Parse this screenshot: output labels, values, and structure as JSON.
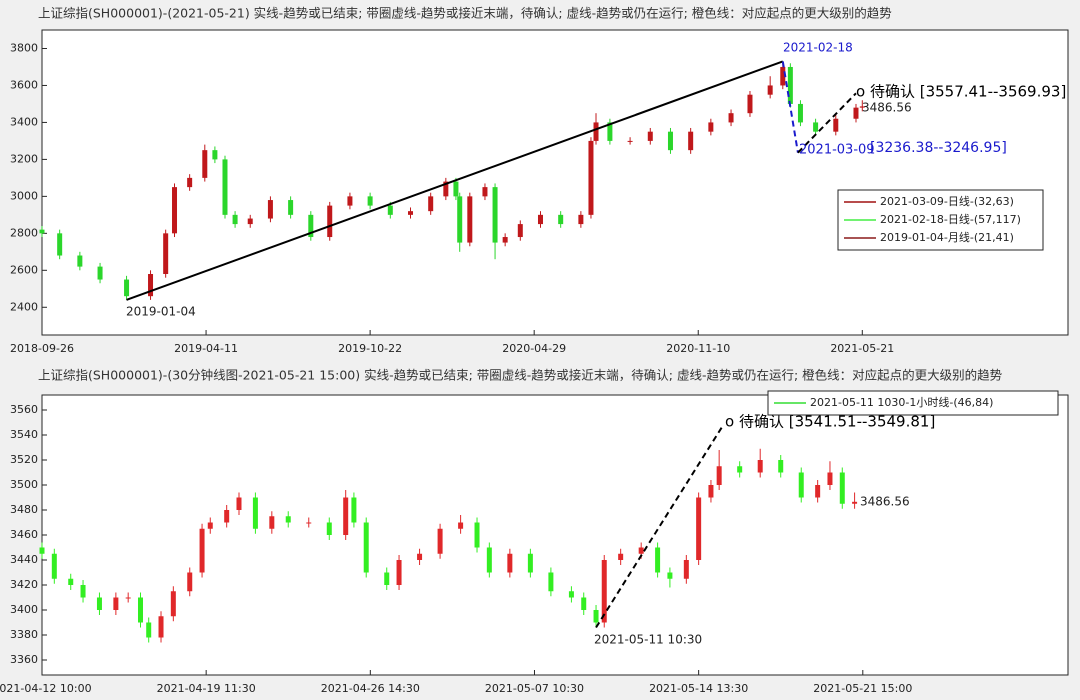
{
  "chart_data": [
    {
      "type": "candlestick",
      "title": "上证综指(SH000001)-(2021-05-21)  实线-趋势或已结束;  带圈虚线-趋势或接近末端，待确认;  虚线-趋势或仍在运行;  橙色线：对应起点的更大级别的趋势",
      "up_color": "#c0181b",
      "down_color": "#2bd62b",
      "x": [
        0,
        14,
        30,
        46,
        67,
        86,
        98,
        105,
        117,
        129,
        137,
        145,
        153,
        165,
        181,
        197,
        213,
        228,
        244,
        260,
        276,
        292,
        308,
        320,
        328,
        331,
        339,
        351,
        359,
        367,
        379,
        395,
        411,
        427,
        435,
        439,
        450,
        466,
        482,
        498,
        514,
        530,
        546,
        561,
        577,
        587,
        593,
        601,
        613,
        629,
        645,
        650
      ],
      "open": [
        2820,
        2800,
        2680,
        2620,
        2550,
        2460,
        2580,
        2800,
        3050,
        3100,
        3250,
        3200,
        2900,
        2850,
        2880,
        2980,
        2900,
        2780,
        2950,
        3000,
        2950,
        2900,
        2920,
        3000,
        3080,
        3000,
        2750,
        3000,
        3050,
        2750,
        2780,
        2850,
        2900,
        2850,
        2900,
        3300,
        3400,
        3300,
        3300,
        3350,
        3250,
        3350,
        3400,
        3450,
        3550,
        3600,
        3700,
        3500,
        3400,
        3350,
        3420,
        3480
      ],
      "high": [
        2840,
        2820,
        2700,
        2640,
        2570,
        2600,
        2820,
        3070,
        3120,
        3280,
        3270,
        3220,
        2920,
        2900,
        3000,
        3000,
        2920,
        2970,
        3020,
        3020,
        2970,
        2940,
        3020,
        3100,
        3100,
        3020,
        3020,
        3070,
        3070,
        2800,
        2870,
        2920,
        2920,
        2920,
        3320,
        3450,
        3420,
        3320,
        3370,
        3370,
        3370,
        3420,
        3470,
        3570,
        3650,
        3730,
        3720,
        3520,
        3420,
        3440,
        3500,
        3520
      ],
      "low": [
        2780,
        2660,
        2600,
        2530,
        2440,
        2440,
        2560,
        2780,
        3030,
        3080,
        3180,
        2880,
        2830,
        2830,
        2860,
        2880,
        2760,
        2760,
        2930,
        2930,
        2880,
        2880,
        2900,
        2980,
        2980,
        2700,
        2730,
        2980,
        2660,
        2730,
        2760,
        2830,
        2830,
        2830,
        2880,
        3280,
        3280,
        3280,
        3280,
        3230,
        3230,
        3330,
        3380,
        3430,
        3530,
        3580,
        3480,
        3380,
        3330,
        3330,
        3400,
        3460
      ],
      "close": [
        2800,
        2680,
        2620,
        2550,
        2460,
        2580,
        2800,
        3050,
        3100,
        3250,
        3200,
        2900,
        2850,
        2880,
        2980,
        2900,
        2780,
        2950,
        3000,
        2950,
        2900,
        2920,
        3000,
        3080,
        3000,
        2750,
        3000,
        3050,
        2750,
        2780,
        2850,
        2900,
        2850,
        2900,
        3300,
        3400,
        3300,
        3300,
        3350,
        3250,
        3350,
        3400,
        3450,
        3550,
        3600,
        3700,
        3500,
        3400,
        3350,
        3420,
        3480,
        3486.56
      ],
      "xlim": [
        0,
        813
      ],
      "xticks": [
        {
          "value": 0,
          "label": "2018-09-26"
        },
        {
          "value": 130,
          "label": "2019-04-11"
        },
        {
          "value": 260,
          "label": "2019-10-22"
        },
        {
          "value": 390,
          "label": "2020-04-29"
        },
        {
          "value": 520,
          "label": "2020-11-10"
        },
        {
          "value": 650,
          "label": "2021-05-21"
        }
      ],
      "ylim": [
        2250,
        3900
      ],
      "yticks": [
        2400,
        2600,
        2800,
        3000,
        3200,
        3400,
        3600,
        3800
      ],
      "lines": [
        {
          "x": [
            67,
            587
          ],
          "y": [
            2440,
            3730
          ],
          "color": "#000000",
          "dashed": false
        },
        {
          "x": [
            587,
            599
          ],
          "y": [
            3730,
            3236.38
          ],
          "color": "#1a1acc",
          "dashed": true
        },
        {
          "x": [
            599,
            645
          ],
          "y": [
            3236.38,
            3557.41
          ],
          "color": "#000000",
          "dashed": true
        }
      ],
      "annotations": [
        {
          "text": "2019-01-04",
          "color": "#222222"
        },
        {
          "text": "2021-02-18",
          "color": "#1a1acc"
        },
        {
          "text": "2021-03-09",
          "color": "#1a1acc"
        },
        {
          "text": "[3236.38--3246.95]",
          "color": "#1a1acc"
        },
        {
          "text": "o 待确认 [3557.41--3569.93]",
          "color": "#000000"
        },
        {
          "text": "3486.56",
          "color": "#222222"
        }
      ],
      "legend": [
        {
          "name": "2021-03-09-日线-(32,63)",
          "color": "#a01010"
        },
        {
          "name": "2021-02-18-日线-(57,117)",
          "color": "#44ee44"
        },
        {
          "name": "2019-01-04-月线-(21,41)",
          "color": "#8b1a1a"
        }
      ]
    },
    {
      "type": "candlestick",
      "title": "上证综指(SH000001)-(30分钟线图-2021-05-21 15:00)  实线-趋势或已结束;  带圈虚线-趋势或接近末端，待确认;  虚线-趋势或仍在运行;  橙色线：对应起点的更大级别的趋势",
      "up_color": "#e0282a",
      "down_color": "#33ee22",
      "x": [
        0,
        3,
        7,
        10,
        14,
        18,
        21,
        24,
        26,
        29,
        32,
        36,
        39,
        41,
        45,
        48,
        52,
        56,
        60,
        65,
        70,
        74,
        76,
        79,
        84,
        87,
        92,
        97,
        102,
        106,
        109,
        114,
        119,
        124,
        129,
        132,
        135,
        137,
        141,
        146,
        150,
        153,
        157,
        160,
        163,
        165,
        170,
        175,
        180,
        185,
        189,
        192,
        195,
        198
      ],
      "open": [
        3450,
        3445,
        3425,
        3420,
        3410,
        3400,
        3410,
        3410,
        3390,
        3378,
        3395,
        3415,
        3430,
        3465,
        3470,
        3480,
        3490,
        3465,
        3475,
        3470,
        3470,
        3460,
        3490,
        3470,
        3430,
        3420,
        3440,
        3445,
        3465,
        3470,
        3450,
        3430,
        3445,
        3430,
        3415,
        3410,
        3400,
        3390,
        3440,
        3445,
        3450,
        3430,
        3425,
        3440,
        3490,
        3500,
        3515,
        3510,
        3520,
        3510,
        3490,
        3500,
        3510,
        3485
      ],
      "high": [
        3454,
        3449,
        3429,
        3424,
        3414,
        3414,
        3414,
        3414,
        3394,
        3399,
        3419,
        3434,
        3469,
        3474,
        3484,
        3494,
        3494,
        3479,
        3479,
        3474,
        3474,
        3496,
        3494,
        3474,
        3434,
        3444,
        3449,
        3469,
        3476,
        3474,
        3454,
        3449,
        3449,
        3434,
        3419,
        3414,
        3404,
        3444,
        3449,
        3454,
        3454,
        3434,
        3444,
        3494,
        3504,
        3528,
        3519,
        3529,
        3524,
        3514,
        3504,
        3519,
        3514,
        3494
      ],
      "low": [
        3441,
        3421,
        3416,
        3406,
        3396,
        3396,
        3406,
        3386,
        3374,
        3374,
        3391,
        3411,
        3426,
        3461,
        3466,
        3476,
        3461,
        3461,
        3466,
        3466,
        3456,
        3456,
        3466,
        3426,
        3416,
        3416,
        3436,
        3441,
        3461,
        3446,
        3426,
        3426,
        3426,
        3411,
        3406,
        3396,
        3386,
        3386,
        3436,
        3441,
        3426,
        3418,
        3421,
        3436,
        3486,
        3496,
        3506,
        3506,
        3506,
        3486,
        3486,
        3496,
        3481,
        3481
      ],
      "close": [
        3445,
        3425,
        3420,
        3410,
        3400,
        3410,
        3410,
        3390,
        3378,
        3395,
        3415,
        3430,
        3465,
        3470,
        3480,
        3490,
        3465,
        3475,
        3470,
        3470,
        3460,
        3490,
        3470,
        3430,
        3420,
        3440,
        3445,
        3465,
        3470,
        3450,
        3430,
        3445,
        3430,
        3415,
        3410,
        3400,
        3390,
        3440,
        3445,
        3450,
        3430,
        3425,
        3440,
        3490,
        3500,
        3515,
        3510,
        3520,
        3510,
        3490,
        3500,
        3510,
        3485,
        3486.56
      ],
      "xlim": [
        0,
        250
      ],
      "xticks": [
        {
          "value": 0,
          "label": "2021-04-12 10:00"
        },
        {
          "value": 40,
          "label": "2021-04-19 11:30"
        },
        {
          "value": 80,
          "label": "2021-04-26 14:30"
        },
        {
          "value": 120,
          "label": "2021-05-07 10:30"
        },
        {
          "value": 160,
          "label": "2021-05-14 13:30"
        },
        {
          "value": 200,
          "label": "2021-05-21 15:00"
        }
      ],
      "ylim": [
        3348,
        3572
      ],
      "yticks": [
        3360,
        3380,
        3400,
        3420,
        3440,
        3460,
        3480,
        3500,
        3520,
        3540,
        3560
      ],
      "lines": [
        {
          "x": [
            135,
            166
          ],
          "y": [
            3386,
            3548
          ],
          "color": "#000000",
          "dashed": true
        }
      ],
      "annotations": [
        {
          "text": "2021-05-11 10:30",
          "color": "#222222"
        },
        {
          "text": "o 待确认 [3541.51--3549.81]",
          "color": "#000000"
        },
        {
          "text": "3486.56",
          "color": "#222222"
        }
      ],
      "legend": [
        {
          "name": "2021-05-11 1030-1小时线-(46,84)",
          "color": "#33dd33"
        }
      ]
    }
  ]
}
